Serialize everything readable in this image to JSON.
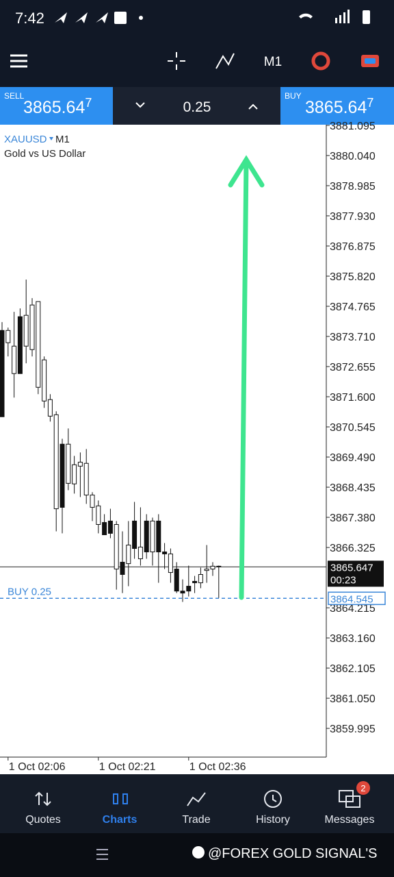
{
  "status_bar": {
    "time": "7:42"
  },
  "toolbar": {
    "timeframe": "M1"
  },
  "trade_panel": {
    "sell": {
      "label": "SELL",
      "price": "3865.64",
      "price_last_digit": "7"
    },
    "volume": "0.25",
    "buy": {
      "label": "BUY",
      "price": "3865.64",
      "price_last_digit": "7"
    }
  },
  "chart_data": {
    "type": "candlestick",
    "symbol": "XAUUSD",
    "timeframe": "M1",
    "description": "Gold vs US Dollar",
    "categories": [
      null,
      "1 Oct 02:06",
      null,
      null,
      null,
      null,
      null,
      null,
      null,
      null,
      null,
      null,
      null,
      null,
      null,
      null,
      "1 Oct 02:21",
      null,
      null,
      null,
      null,
      null,
      null,
      null,
      null,
      null,
      null,
      null,
      null,
      null,
      null,
      "1 Oct 02:36",
      null,
      null,
      null,
      null,
      null
    ],
    "open": [
      3873.92,
      3873.49,
      3872.41,
      3874.4,
      3873.37,
      3873.25,
      3871.93,
      3871.45,
      3870.92,
      3867.68,
      3869.94,
      3868.57,
      3868.55,
      3869.17,
      3868.16,
      3867.73,
      3867.13,
      3867.2,
      3867.25,
      3865.57,
      3865.81,
      3865.76,
      3867.25,
      3865.93,
      3867.25,
      3866.17,
      3867.25,
      3866.17,
      3865.45,
      3865.57,
      3864.8,
      3864.97,
      3865.14,
      3865.09,
      3865.52,
      3865.57,
      3865.67
    ],
    "high": [
      3874.21,
      3874.02,
      3874.57,
      3874.69,
      3875.7,
      3875.05,
      3874.93,
      3873.01,
      3871.69,
      3871.09,
      3870.13,
      3870.49,
      3869.53,
      3869.65,
      3869.77,
      3868.26,
      3867.97,
      3867.49,
      3867.68,
      3867.25,
      3866.89,
      3867.25,
      3867.92,
      3867.73,
      3867.49,
      3867.37,
      3867.49,
      3866.48,
      3866.29,
      3865.81,
      3865.21,
      3865.69,
      3865.33,
      3865.62,
      3866.41,
      3865.81,
      3865.69
    ],
    "low": [
      3870.9,
      3873.01,
      3871.57,
      3872.41,
      3872.77,
      3873.01,
      3871.69,
      3871.21,
      3870.73,
      3866.89,
      3866.82,
      3868.33,
      3868.21,
      3868.09,
      3867.85,
      3867.25,
      3866.82,
      3866.77,
      3866.65,
      3864.85,
      3864.73,
      3864.97,
      3865.93,
      3865.69,
      3865.93,
      3865.69,
      3865.09,
      3865.57,
      3865.09,
      3864.73,
      3864.42,
      3864.61,
      3864.73,
      3864.9,
      3865.09,
      3865.33,
      3864.56
    ],
    "close": [
      3870.9,
      3873.92,
      3873.37,
      3872.41,
      3874.45,
      3874.81,
      3874.93,
      3872.89,
      3871.5,
      3870.97,
      3867.73,
      3869.94,
      3869.22,
      3869.31,
      3869.27,
      3868.16,
      3867.78,
      3866.77,
      3866.82,
      3867.13,
      3865.38,
      3866.41,
      3866.29,
      3866.34,
      3866.17,
      3867.25,
      3866.17,
      3866.1,
      3866.1,
      3864.8,
      3864.73,
      3864.8,
      3865.09,
      3865.38,
      3865.57,
      3865.67,
      3865.647
    ],
    "ylim": [
      3858.99,
      3881.119
    ],
    "yticks": [
      3881.095,
      {
        "value": 3880.04,
        "label": "3880.040"
      },
      3878.985,
      {
        "value": 3877.93,
        "label": "3877.930"
      },
      3876.875,
      {
        "value": 3875.82,
        "label": "3875.820"
      },
      3874.765,
      {
        "value": 3873.71,
        "label": "3873.710"
      },
      3872.655,
      {
        "value": 3871.6,
        "label": "3871.600"
      },
      3870.545,
      {
        "value": 3869.49,
        "label": "3869.490"
      },
      3868.435,
      {
        "value": 3867.38,
        "label": "3867.380"
      },
      3866.325,
      3864.215,
      {
        "value": 3863.16,
        "label": "3863.160"
      },
      3862.105,
      {
        "value": 3861.05,
        "label": "3861.050"
      },
      3859.995
    ],
    "current_price": 3865.647,
    "timer": "00:23",
    "position": {
      "label": "BUY 0.25",
      "price": 3864.545
    }
  },
  "nav": [
    {
      "label": "Quotes"
    },
    {
      "label": "Charts"
    },
    {
      "label": "Trade"
    },
    {
      "label": "History"
    },
    {
      "label": "Messages",
      "badge": "2"
    }
  ],
  "watermark": "@FOREX GOLD SIGNAL'S"
}
